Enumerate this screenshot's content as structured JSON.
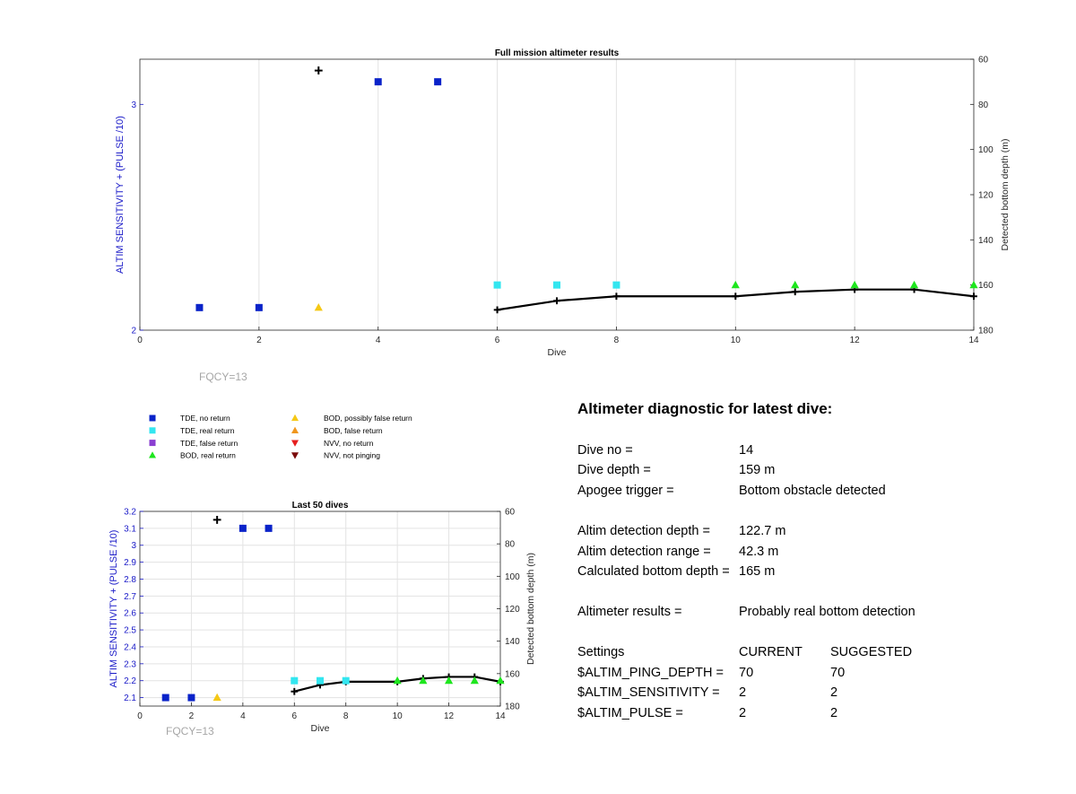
{
  "chart_data": [
    {
      "type": "scatter",
      "title": "Full mission altimeter results",
      "xlabel": "Dive",
      "ylabel": "ALTIM SENSITIVITY + (PULSE /10)",
      "y2label": "Detected bottom depth (m)",
      "xlim": [
        0,
        14
      ],
      "ylim": [
        2,
        3.2
      ],
      "y2lim": [
        60,
        180
      ],
      "y2_reversed": true,
      "xticks": [
        "0",
        "2",
        "4",
        "6",
        "8",
        "10",
        "12",
        "14"
      ],
      "yticks": [
        "2",
        "3"
      ],
      "y2ticks": [
        "60",
        "80",
        "100",
        "120",
        "140",
        "160",
        "180"
      ],
      "grid": "x-major",
      "annotation": "FQCY=13",
      "series": [
        {
          "name": "TDE, no return",
          "marker": "square",
          "color": "#0a23c9",
          "x": [
            1,
            2,
            4,
            5
          ],
          "y": [
            2.1,
            2.1,
            3.1,
            3.1
          ]
        },
        {
          "name": "TDE, real return",
          "marker": "square",
          "color": "#33e6f0",
          "x": [
            6,
            7,
            8
          ],
          "y": [
            2.2,
            2.2,
            2.2
          ]
        },
        {
          "name": "BOD, real return",
          "marker": "triangle-up",
          "color": "#1ee61e",
          "x": [
            10,
            11,
            12,
            13,
            14
          ],
          "y": [
            2.2,
            2.2,
            2.2,
            2.2,
            2.2
          ]
        },
        {
          "name": "BOD, possibly false return",
          "marker": "triangle-up",
          "color": "#f5c815",
          "x": [
            3
          ],
          "y": [
            2.1
          ]
        },
        {
          "name": "",
          "marker": "plus",
          "color": "#000000",
          "x": [
            3
          ],
          "y": [
            3.15
          ]
        }
      ],
      "depth_line": {
        "x": [
          6,
          7,
          8,
          9,
          10,
          11,
          12,
          13,
          14
        ],
        "depth": [
          171,
          167,
          165,
          165,
          165,
          163,
          162,
          162,
          165
        ],
        "color": "#000000"
      }
    },
    {
      "type": "scatter",
      "title": "Last 50 dives",
      "xlabel": "Dive",
      "ylabel": "ALTIM SENSITIVITY + (PULSE /10)",
      "y2label": "Detected bottom depth (m)",
      "xlim": [
        0,
        14
      ],
      "ylim": [
        2.05,
        3.2
      ],
      "y2lim": [
        60,
        180
      ],
      "y2_reversed": true,
      "xticks": [
        "0",
        "2",
        "4",
        "6",
        "8",
        "10",
        "12",
        "14"
      ],
      "yticks": [
        "2.1",
        "2.2",
        "2.3",
        "2.4",
        "2.5",
        "2.6",
        "2.7",
        "2.8",
        "2.9",
        "3",
        "3.1",
        "3.2"
      ],
      "y2ticks": [
        "60",
        "80",
        "100",
        "120",
        "140",
        "160",
        "180"
      ],
      "grid": "both",
      "annotation": "FQCY=13",
      "series": [
        {
          "name": "TDE, no return",
          "marker": "square",
          "color": "#0a23c9",
          "x": [
            1,
            2,
            4,
            5
          ],
          "y": [
            2.1,
            2.1,
            3.1,
            3.1
          ]
        },
        {
          "name": "TDE, real return",
          "marker": "square",
          "color": "#33e6f0",
          "x": [
            6,
            7,
            8
          ],
          "y": [
            2.2,
            2.2,
            2.2
          ]
        },
        {
          "name": "BOD, real return",
          "marker": "triangle-up",
          "color": "#1ee61e",
          "x": [
            10,
            11,
            12,
            13,
            14
          ],
          "y": [
            2.2,
            2.2,
            2.2,
            2.2,
            2.2
          ]
        },
        {
          "name": "BOD, possibly false return",
          "marker": "triangle-up",
          "color": "#f5c815",
          "x": [
            3
          ],
          "y": [
            2.1
          ]
        },
        {
          "name": "",
          "marker": "plus",
          "color": "#000000",
          "x": [
            3
          ],
          "y": [
            3.15
          ]
        }
      ],
      "depth_line": {
        "x": [
          6,
          7,
          8,
          9,
          10,
          11,
          12,
          13,
          14
        ],
        "depth": [
          171,
          167,
          165,
          165,
          165,
          163,
          162,
          162,
          165
        ],
        "color": "#000000"
      }
    }
  ],
  "legend": [
    {
      "label": "TDE, no return",
      "marker": "square",
      "color": "#0a23c9"
    },
    {
      "label": "TDE, real return",
      "marker": "square",
      "color": "#33e6f0"
    },
    {
      "label": "TDE, false return",
      "marker": "square",
      "color": "#8a3fd1"
    },
    {
      "label": "BOD, real return",
      "marker": "triangle-up",
      "color": "#1ee61e"
    },
    {
      "label": "BOD, possibly false return",
      "marker": "triangle-up",
      "color": "#f5c815"
    },
    {
      "label": "BOD, false return",
      "marker": "triangle-up",
      "color": "#f0961e"
    },
    {
      "label": "NVV, no return",
      "marker": "triangle-down",
      "color": "#e61e1e"
    },
    {
      "label": "NVV, not pinging",
      "marker": "triangle-down",
      "color": "#7a0a0a"
    }
  ],
  "diagnostic": {
    "title": "Altimeter diagnostic for latest dive:",
    "dive_no": {
      "label": "Dive no =",
      "value": "14"
    },
    "dive_depth": {
      "label": "Dive depth =",
      "value": "159 m"
    },
    "apogee_trigger": {
      "label": "Apogee trigger =",
      "value": "Bottom obstacle detected"
    },
    "altim_detection_depth": {
      "label": "Altim detection depth =",
      "value": "122.7 m"
    },
    "altim_detection_range": {
      "label": "Altim detection range =",
      "value": "42.3 m"
    },
    "calculated_bottom_depth": {
      "label": "Calculated bottom depth =",
      "value": "165 m"
    },
    "altimeter_results": {
      "label": "Altimeter results =",
      "value": "Probably real bottom detection"
    },
    "settings_header": {
      "label": "Settings",
      "current": "CURRENT",
      "suggested": "SUGGESTED"
    },
    "ping_depth": {
      "label": "$ALTIM_PING_DEPTH =",
      "current": "70",
      "suggested": "70"
    },
    "sensitivity": {
      "label": "$ALTIM_SENSITIVITY =",
      "current": "2",
      "suggested": "2"
    },
    "pulse": {
      "label": "$ALTIM_PULSE =",
      "current": "2",
      "suggested": "2"
    }
  },
  "colors": {
    "axis_left": "#1a1ac8",
    "axis": "#262626",
    "grid": "#e3e3e3",
    "annotation": "#a6a6a6"
  }
}
